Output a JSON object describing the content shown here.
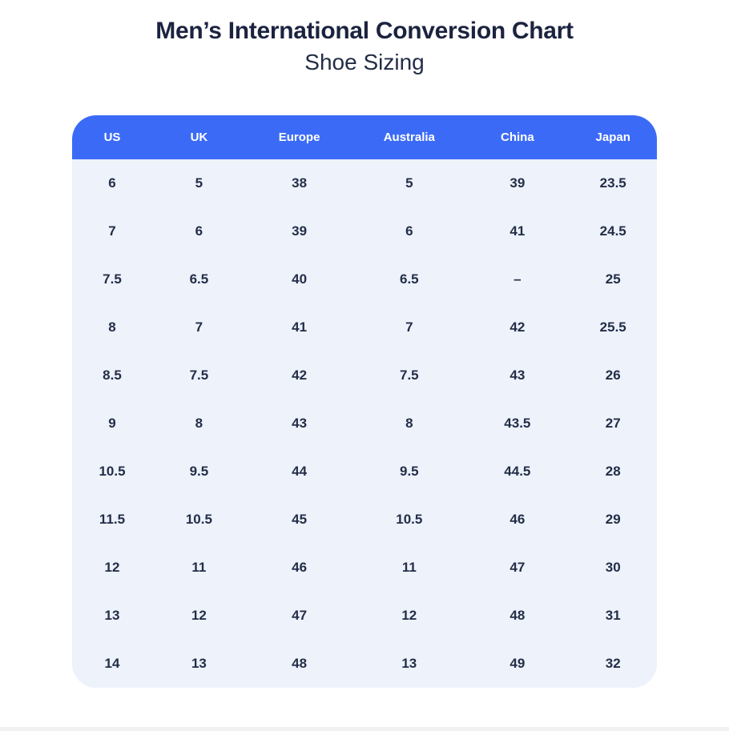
{
  "header": {
    "title": "Men’s International Conversion Chart",
    "subtitle": "Shoe Sizing"
  },
  "colors": {
    "table_header_bg": "#3b6bf6",
    "table_header_text": "#ffffff",
    "table_body_bg": "#edf2fb",
    "table_body_text": "#232e47",
    "title_text": "#1b2340"
  },
  "chart_data": {
    "type": "table",
    "title": "Men’s International Conversion Chart",
    "subtitle": "Shoe Sizing",
    "columns": [
      "US",
      "UK",
      "Europe",
      "Australia",
      "China",
      "Japan"
    ],
    "rows": [
      [
        "6",
        "5",
        "38",
        "5",
        "39",
        "23.5"
      ],
      [
        "7",
        "6",
        "39",
        "6",
        "41",
        "24.5"
      ],
      [
        "7.5",
        "6.5",
        "40",
        "6.5",
        "–",
        "25"
      ],
      [
        "8",
        "7",
        "41",
        "7",
        "42",
        "25.5"
      ],
      [
        "8.5",
        "7.5",
        "42",
        "7.5",
        "43",
        "26"
      ],
      [
        "9",
        "8",
        "43",
        "8",
        "43.5",
        "27"
      ],
      [
        "10.5",
        "9.5",
        "44",
        "9.5",
        "44.5",
        "28"
      ],
      [
        "11.5",
        "10.5",
        "45",
        "10.5",
        "46",
        "29"
      ],
      [
        "12",
        "11",
        "46",
        "11",
        "47",
        "30"
      ],
      [
        "13",
        "12",
        "47",
        "12",
        "48",
        "31"
      ],
      [
        "14",
        "13",
        "48",
        "13",
        "49",
        "32"
      ]
    ]
  }
}
